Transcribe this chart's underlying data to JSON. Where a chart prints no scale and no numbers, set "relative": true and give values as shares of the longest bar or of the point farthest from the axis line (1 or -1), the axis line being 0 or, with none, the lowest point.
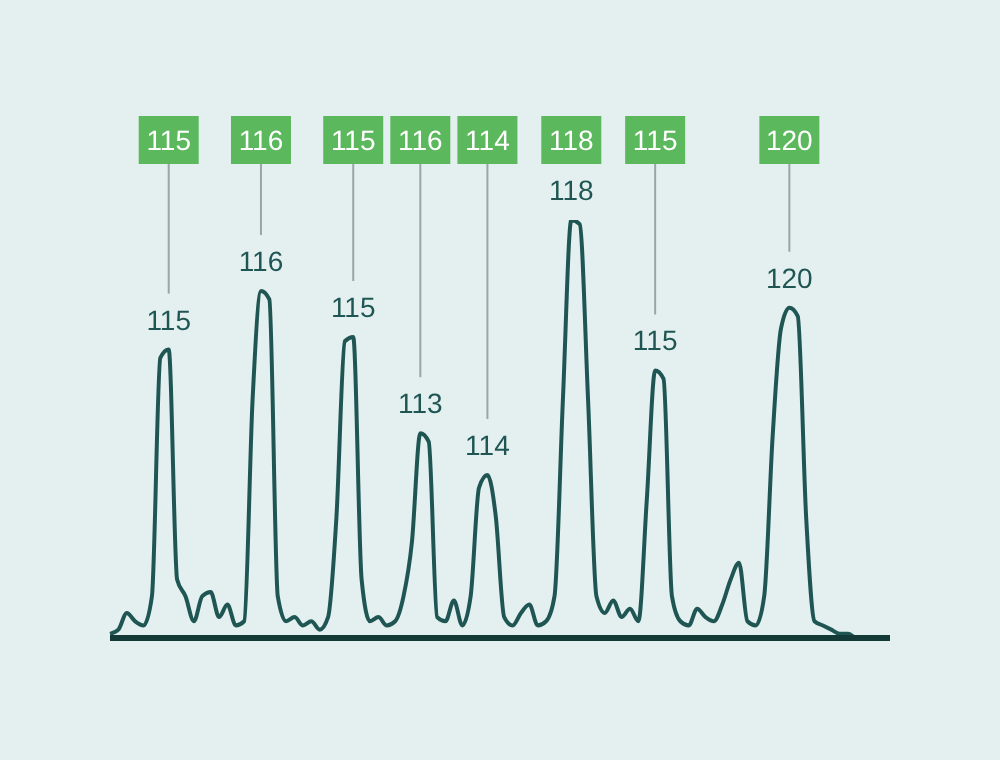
{
  "chart_data": {
    "type": "line",
    "relative": true,
    "color": "#1f5654",
    "marker": "none",
    "line_style": "solid",
    "grid": false,
    "legend": false,
    "categories": [
      null,
      null,
      null,
      null,
      null,
      null,
      null,
      null,
      null,
      null,
      null,
      null,
      null,
      null,
      null,
      null,
      null,
      null,
      null,
      null,
      null,
      null,
      null,
      null,
      null,
      null,
      null,
      null,
      null,
      null,
      null,
      null,
      null,
      null,
      null,
      null,
      null,
      null,
      null,
      null,
      null,
      null,
      null,
      null,
      null,
      null,
      null,
      null,
      null,
      null,
      null,
      null,
      null,
      null,
      null,
      null,
      null,
      null,
      null,
      null,
      null,
      null,
      null,
      null,
      null,
      null,
      null,
      null,
      null,
      null,
      null,
      null,
      null,
      null,
      null,
      null,
      null,
      null,
      null,
      null,
      null,
      null,
      null,
      null,
      null,
      null,
      null,
      null,
      null,
      null,
      null,
      null,
      null,
      null
    ],
    "values": [
      0.01,
      0.02,
      0.06,
      0.04,
      0.03,
      0.1,
      0.67,
      0.69,
      0.14,
      0.1,
      0.04,
      0.1,
      0.11,
      0.05,
      0.08,
      0.03,
      0.04,
      0.57,
      0.83,
      0.81,
      0.1,
      0.04,
      0.05,
      0.03,
      0.04,
      0.02,
      0.05,
      0.29,
      0.71,
      0.72,
      0.14,
      0.04,
      0.05,
      0.03,
      0.04,
      0.1,
      0.23,
      0.49,
      0.47,
      0.05,
      0.04,
      0.09,
      0.03,
      0.1,
      0.36,
      0.39,
      0.29,
      0.05,
      0.03,
      0.06,
      0.08,
      0.03,
      0.04,
      0.1,
      0.57,
      1,
      0.99,
      0.57,
      0.1,
      0.06,
      0.09,
      0.05,
      0.07,
      0.04,
      0.33,
      0.64,
      0.62,
      0.1,
      0.04,
      0.03,
      0.07,
      0.05,
      0.04,
      0.08,
      0.14,
      0.18,
      0.04,
      0.03,
      0.1,
      0.48,
      0.74,
      0.79,
      0.77,
      0.29,
      0.04,
      0.03,
      0.02,
      0.01,
      0.01,
      0,
      0,
      0,
      0,
      0
    ],
    "annotations": [
      "115",
      "116",
      "115",
      "113",
      "114",
      "118",
      "115",
      "120",
      "115",
      "116",
      "115",
      "116",
      "114",
      "118",
      "115",
      "120"
    ]
  }
}
